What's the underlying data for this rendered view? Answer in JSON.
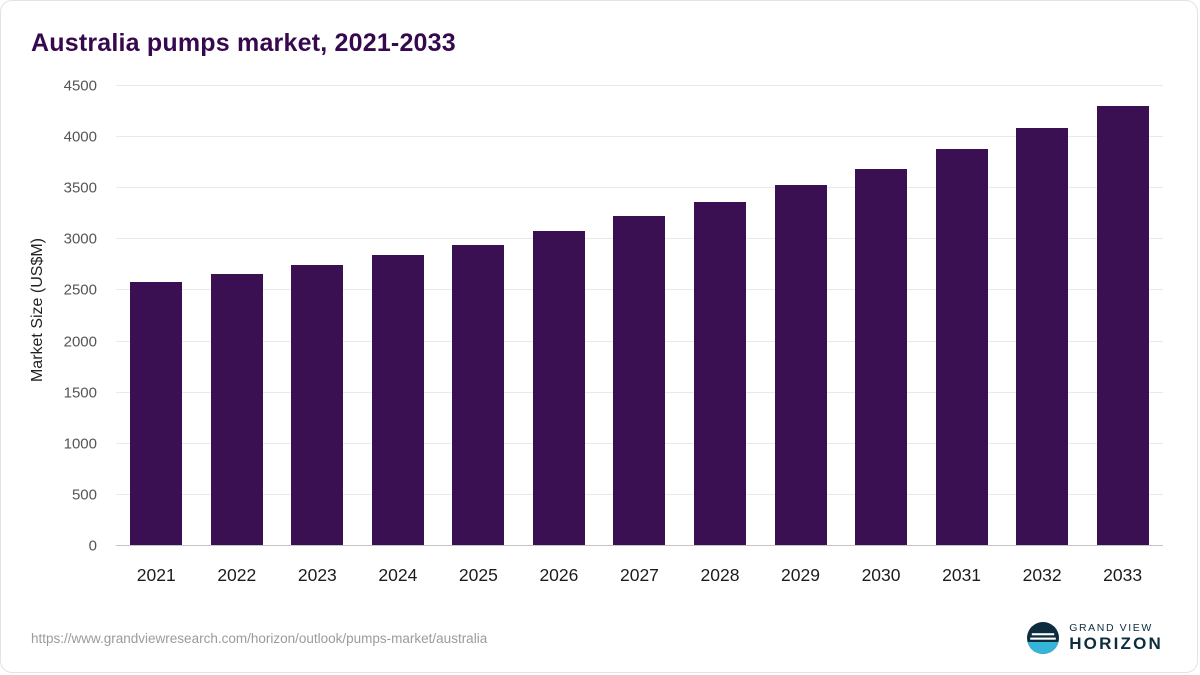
{
  "title": "Australia pumps market, 2021-2033",
  "footer": {
    "source_url": "https://www.grandviewresearch.com/horizon/outlook/pumps-market/australia",
    "brand_line1": "GRAND VIEW",
    "brand_line2": "HORIZON"
  },
  "colors": {
    "bar": "#3b1053",
    "title": "#36084e",
    "grid": "#e9e9e9",
    "axis_line": "#c4c4c4",
    "ytick_text": "#555555",
    "xtick_text": "#1c1c1c",
    "url_text": "#9b9b9b",
    "brand_navy": "#0d2d3f",
    "brand_teal": "#35b6d9"
  },
  "chart_data": {
    "type": "bar",
    "title": "Australia pumps market, 2021-2033",
    "categories": [
      "2021",
      "2022",
      "2023",
      "2024",
      "2025",
      "2026",
      "2027",
      "2028",
      "2029",
      "2030",
      "2031",
      "2032",
      "2033"
    ],
    "values": [
      2580,
      2665,
      2750,
      2845,
      2945,
      3080,
      3225,
      3370,
      3530,
      3685,
      3880,
      4085,
      4300
    ],
    "xlabel": "",
    "ylabel": "Market Size (US$M)",
    "ylim": [
      0,
      4500
    ],
    "yticks": [
      0,
      500,
      1000,
      1500,
      2000,
      2500,
      3000,
      3500,
      4000,
      4500
    ],
    "grid": true,
    "legend_position": "none",
    "bar_color": "#3b1053"
  }
}
